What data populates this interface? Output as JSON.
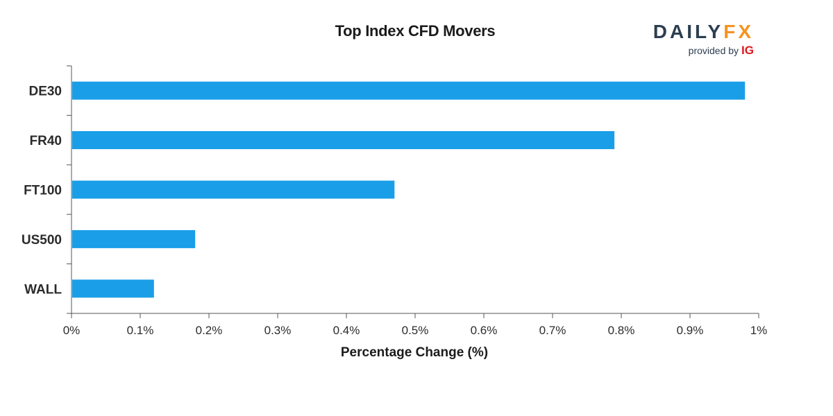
{
  "chart_data": {
    "type": "bar",
    "orientation": "horizontal",
    "title": "Top Index CFD Movers",
    "xlabel": "Percentage Change (%)",
    "ylabel": "",
    "categories": [
      "DE30",
      "FR40",
      "FT100",
      "US500",
      "WALL"
    ],
    "values": [
      0.98,
      0.79,
      0.47,
      0.18,
      0.12
    ],
    "xlim": [
      0,
      1
    ],
    "xticks": [
      0,
      0.1,
      0.2,
      0.3,
      0.4,
      0.5,
      0.6,
      0.7,
      0.8,
      0.9,
      1.0
    ],
    "xtick_labels": [
      "0%",
      "0.1%",
      "0.2%",
      "0.3%",
      "0.4%",
      "0.5%",
      "0.6%",
      "0.7%",
      "0.8%",
      "0.9%",
      "1%"
    ],
    "grid": false,
    "bar_color": "#1a9ee8",
    "axis_color": "#555555"
  },
  "logo": {
    "brand_daily": "DAILY",
    "brand_fx": "FX",
    "provided_by": "provided by",
    "partner": "IG",
    "brand_color": "#2c3e50",
    "fx_color": "#f7931e",
    "partner_color": "#e0161d"
  }
}
